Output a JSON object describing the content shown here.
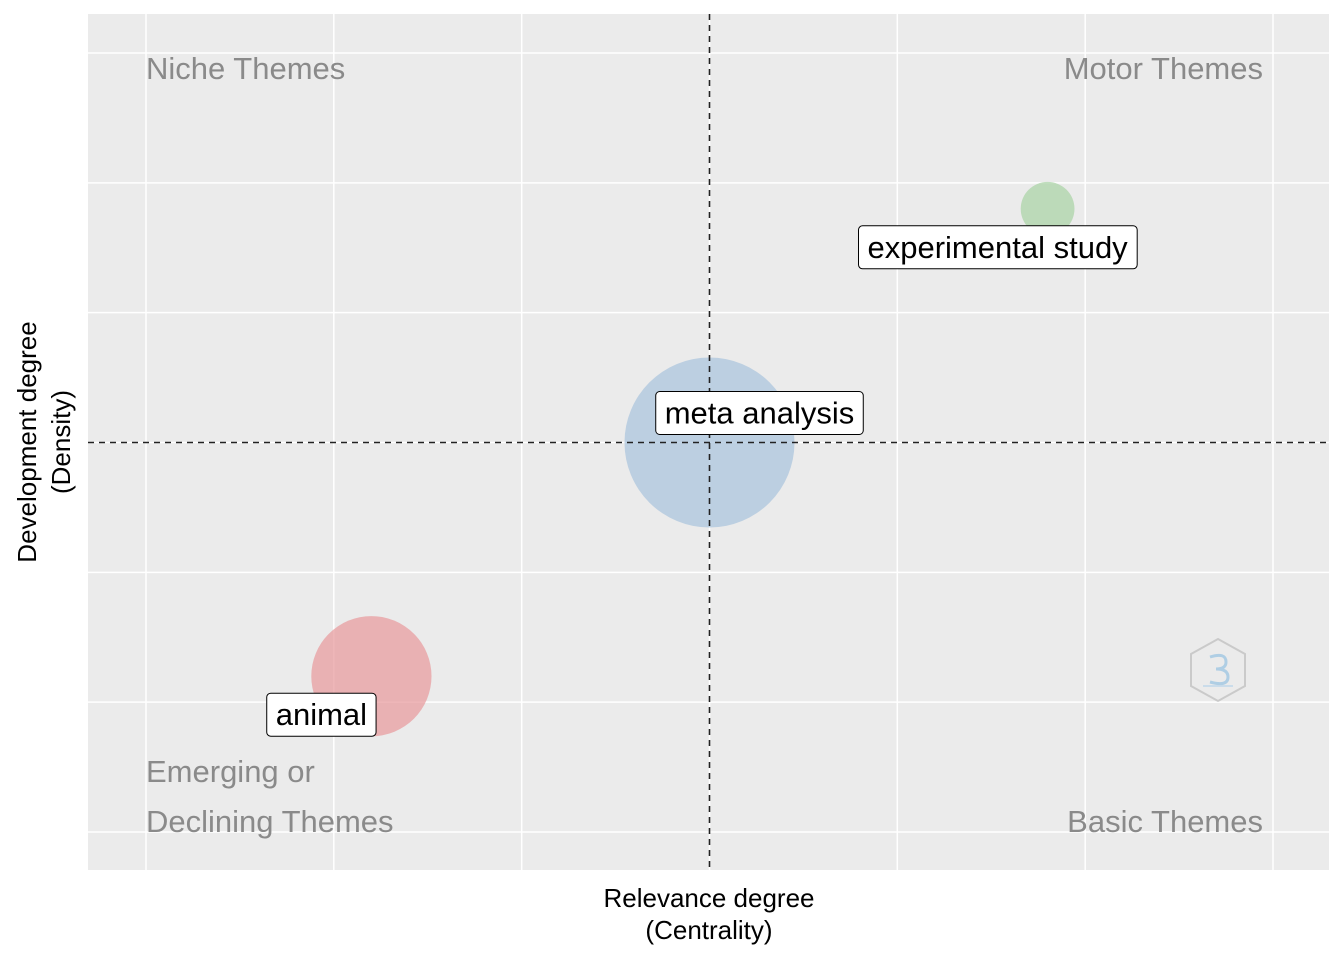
{
  "chart_data": {
    "type": "scatter",
    "title": "",
    "xlabel": [
      "Relevance degree",
      "(Centrality)"
    ],
    "ylabel": [
      "Development degree",
      "(Density)"
    ],
    "quadrant_labels": {
      "top_left": "Niche Themes",
      "top_right": "Motor Themes",
      "bottom_left": [
        "Emerging or",
        "Declining Themes"
      ],
      "bottom_right": "Basic Themes"
    },
    "x_reference": 0.5,
    "y_reference": 0.5,
    "grid": true,
    "points": [
      {
        "label": "experimental study",
        "x": 0.8,
        "y": 0.8,
        "size": 1,
        "color": "#a9d3a5"
      },
      {
        "label": "meta analysis",
        "x": 0.5,
        "y": 0.5,
        "size": 10,
        "color": "#a9c4dd"
      },
      {
        "label": "animal",
        "x": 0.2,
        "y": 0.2,
        "size": 5,
        "color": "#e89a9c"
      }
    ],
    "watermark": "bibliometrix logo"
  }
}
